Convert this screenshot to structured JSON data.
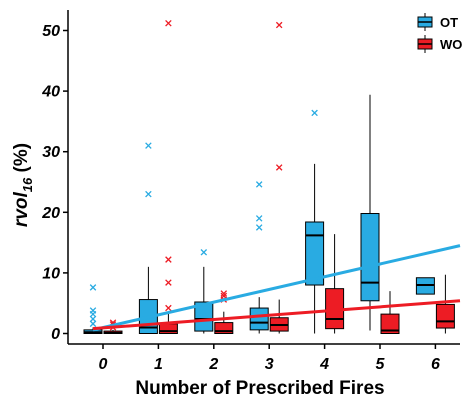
{
  "chart_data": {
    "type": "box",
    "xlabel": "Number of Prescribed Fires",
    "ylabel": "rvol16 (%)",
    "ylabel_parts": {
      "base": "rvol",
      "subscript": "16",
      "suffix": " (%)"
    },
    "categories": [
      "0",
      "1",
      "2",
      "3",
      "4",
      "5",
      "6"
    ],
    "ylim": [
      -1,
      53
    ],
    "yticks": [
      0,
      10,
      20,
      30,
      40,
      50
    ],
    "legend_position": "top-right",
    "series": [
      {
        "name": "OT",
        "color": "#29ABE2",
        "boxes": [
          {
            "x": 0,
            "q1": 0,
            "median": 0.2,
            "q3": 0.6,
            "whisker_low": 0,
            "whisker_high": 1.0,
            "outliers": [
              1.6,
              2.4,
              3.2,
              3.8,
              7.6
            ]
          },
          {
            "x": 1,
            "q1": 0,
            "median": 1.0,
            "q3": 5.6,
            "whisker_low": 0,
            "whisker_high": 11.0,
            "outliers": [
              23.0,
              31.0
            ]
          },
          {
            "x": 2,
            "q1": 0.4,
            "median": 2.4,
            "q3": 5.2,
            "whisker_low": 0,
            "whisker_high": 11.0,
            "outliers": [
              13.4
            ]
          },
          {
            "x": 3,
            "q1": 0.6,
            "median": 1.8,
            "q3": 4.2,
            "whisker_low": 0,
            "whisker_high": 6.0,
            "outliers": [
              17.5,
              19.0,
              24.6
            ]
          },
          {
            "x": 4,
            "q1": 8.0,
            "median": 16.2,
            "q3": 18.4,
            "whisker_low": 0,
            "whisker_high": 28.0,
            "outliers": [
              36.4
            ]
          },
          {
            "x": 5,
            "q1": 5.4,
            "median": 8.4,
            "q3": 19.8,
            "whisker_low": 0.5,
            "whisker_high": 39.4,
            "outliers": []
          },
          {
            "x": 6,
            "q1": 6.5,
            "median": 8.0,
            "q3": 9.2,
            "whisker_low": 6.5,
            "whisker_high": 9.2,
            "outliers": []
          }
        ],
        "trend": {
          "y_start": 0.6,
          "y_end": 14.5
        }
      },
      {
        "name": "WO",
        "color": "#ED1C24",
        "boxes": [
          {
            "x": 0,
            "q1": 0,
            "median": 0.1,
            "q3": 0.4,
            "whisker_low": 0,
            "whisker_high": 0.6,
            "outliers": [
              1.0,
              1.5,
              1.8
            ]
          },
          {
            "x": 1,
            "q1": 0,
            "median": 0.4,
            "q3": 1.6,
            "whisker_low": 0,
            "whisker_high": 3.6,
            "outliers": [
              4.2,
              8.4,
              12.2,
              51.2
            ]
          },
          {
            "x": 2,
            "q1": 0,
            "median": 0.4,
            "q3": 1.8,
            "whisker_low": 0,
            "whisker_high": 3.6,
            "outliers": [
              5.6,
              6.2,
              6.6
            ]
          },
          {
            "x": 3,
            "q1": 0.4,
            "median": 1.4,
            "q3": 2.6,
            "whisker_low": 0,
            "whisker_high": 5.6,
            "outliers": [
              27.4,
              50.9
            ]
          },
          {
            "x": 4,
            "q1": 0.8,
            "median": 2.4,
            "q3": 7.4,
            "whisker_low": 0,
            "whisker_high": 16.4,
            "outliers": []
          },
          {
            "x": 5,
            "q1": 0,
            "median": 0.5,
            "q3": 3.2,
            "whisker_low": 0,
            "whisker_high": 7.0,
            "outliers": []
          },
          {
            "x": 6,
            "q1": 0.9,
            "median": 2.0,
            "q3": 4.8,
            "whisker_low": 0,
            "whisker_high": 9.7,
            "outliers": []
          }
        ],
        "trend": {
          "y_start": 0.8,
          "y_end": 5.4
        }
      }
    ]
  }
}
